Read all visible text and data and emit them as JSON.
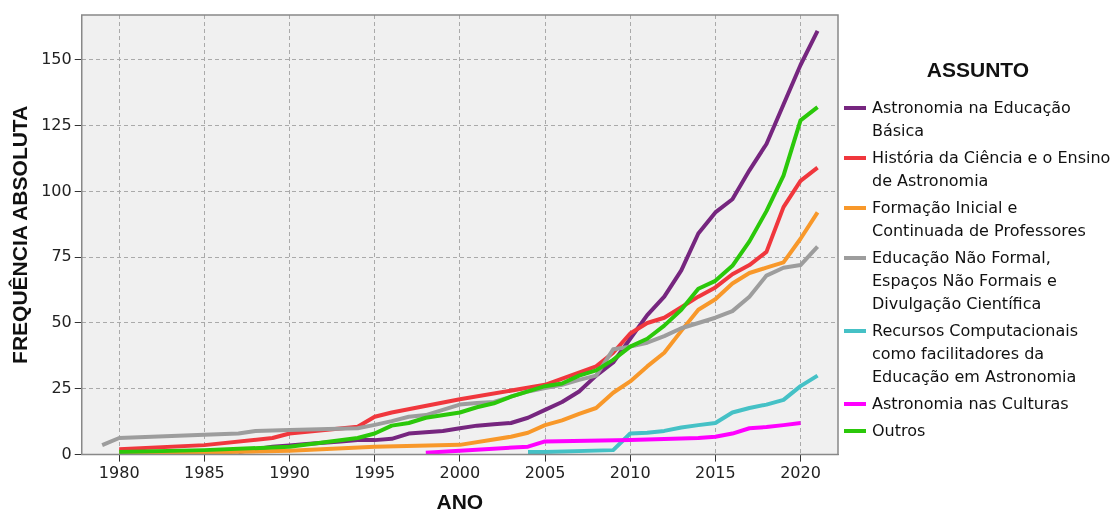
{
  "chart_data": {
    "type": "line",
    "xlabel": "ANO",
    "ylabel": "FREQUÊNCIA ABSOLUTA",
    "legend_title": "ASSUNTO",
    "xlim": [
      1977.8,
      2022.2
    ],
    "xticks": [
      1980,
      1985,
      1990,
      1995,
      2000,
      2005,
      2010,
      2015,
      2020
    ],
    "ylim": [
      0,
      167
    ],
    "yticks": [
      0,
      25,
      50,
      75,
      100,
      125,
      150
    ],
    "grid": true,
    "legend": "right",
    "marker": "none",
    "line_style": "solid",
    "series": [
      {
        "name": "Astronomia na Educação Básica",
        "color": "#76267f",
        "x": [
          1987,
          1988,
          1989,
          1990,
          1991,
          1992,
          1993,
          1994,
          1995,
          1996,
          1997,
          1998,
          1999,
          2000,
          2001,
          2002,
          2003,
          2004,
          2005,
          2006,
          2007,
          2008,
          2009,
          2010,
          2011,
          2012,
          2013,
          2014,
          2015,
          2016,
          2017,
          2018,
          2019,
          2020,
          2021
        ],
        "values": [
          1,
          2,
          3,
          3.5,
          4,
          4.5,
          5,
          5.5,
          5.5,
          6,
          8,
          8.5,
          9,
          10,
          11,
          11.5,
          12,
          14,
          17,
          20,
          24,
          30,
          35,
          44,
          53,
          60,
          70,
          84,
          92,
          97,
          108,
          118,
          133,
          148,
          161
        ]
      },
      {
        "name": "História da Ciência e o Ensino de Astronomia",
        "color": "#f0373d",
        "x": [
          1980,
          1985,
          1989,
          1990,
          1994,
          1995,
          1996,
          2000,
          2005,
          2008,
          2009,
          2010,
          2011,
          2012,
          2013,
          2014,
          2015,
          2016,
          2017,
          2018,
          2019,
          2020,
          2021
        ],
        "values": [
          2,
          3.6,
          6.3,
          8,
          10.6,
          14.4,
          16,
          21,
          26.5,
          33.5,
          38.7,
          46,
          50,
          52,
          56,
          60,
          63.5,
          68.5,
          72,
          77,
          94,
          104,
          109
        ]
      },
      {
        "name": "Formação Inicial e Continuada de Professores",
        "color": "#f8982a",
        "x": [
          1980,
          1985,
          1990,
          1995,
          2000,
          2003,
          2004,
          2005,
          2006,
          2007,
          2008,
          2009,
          2010,
          2011,
          2012,
          2013,
          2014,
          2015,
          2016,
          2017,
          2018,
          2019,
          2020,
          2021
        ],
        "values": [
          0.5,
          0.8,
          1.5,
          3,
          3.7,
          6.8,
          8.3,
          11.2,
          13,
          15.5,
          17.7,
          23.5,
          27.8,
          33.5,
          38.7,
          47,
          55,
          59,
          65,
          69,
          71,
          73,
          82,
          92
        ]
      },
      {
        "name": "Educação Não Formal, Espaços Não Formais e Divulgação Científica",
        "color": "#9d9d9d",
        "x": [
          1979,
          1980,
          1985,
          1987,
          1988,
          1990,
          1994,
          1995,
          1996,
          1997,
          1998,
          2000,
          2001,
          2002,
          2003,
          2004,
          2005,
          2006,
          2007,
          2008,
          2009,
          2010,
          2011,
          2012,
          2013,
          2014,
          2015,
          2016,
          2017,
          2018,
          2019,
          2020,
          2021
        ],
        "values": [
          3.6,
          6.3,
          7.5,
          8,
          9,
          9.3,
          10,
          11.3,
          12.7,
          14.4,
          15,
          19,
          19.6,
          20,
          22,
          24,
          25.3,
          26.5,
          28.4,
          30,
          40,
          41,
          42.5,
          45,
          48,
          50,
          52,
          54.5,
          60,
          68,
          71,
          72,
          79
        ]
      },
      {
        "name": "Recursos Computacionais como facilitadores da Educação em Astronomia",
        "color": "#45c1c6",
        "x": [
          2004,
          2005,
          2009,
          2010,
          2011,
          2012,
          2013,
          2014,
          2015,
          2016,
          2017,
          2018,
          2019,
          2020,
          2021
        ],
        "values": [
          1,
          1,
          1.7,
          8,
          8.3,
          9,
          10.3,
          11.2,
          12,
          16,
          17.7,
          19,
          20.8,
          26,
          30
        ]
      },
      {
        "name": "Astronomia nas Culturas",
        "color": "#ff00ff",
        "x": [
          1998,
          2000,
          2004,
          2005,
          2010,
          2014,
          2015,
          2016,
          2017,
          2018,
          2019,
          2020
        ],
        "values": [
          0.7,
          1.5,
          3,
          5,
          5.5,
          6.3,
          6.8,
          8,
          10,
          10.5,
          11.2,
          12
        ]
      },
      {
        "name": "Outros",
        "color": "#2bc80a",
        "x": [
          1980,
          1985,
          1990,
          1994,
          1995,
          1996,
          1997,
          1998,
          2000,
          2001,
          2002,
          2003,
          2004,
          2005,
          2006,
          2007,
          2008,
          2009,
          2010,
          2011,
          2012,
          2013,
          2014,
          2015,
          2016,
          2017,
          2018,
          2019,
          2020,
          2021
        ],
        "values": [
          1,
          1.7,
          3,
          6.3,
          8,
          11,
          12,
          14,
          16,
          18,
          19.5,
          22,
          24,
          26,
          27,
          30,
          32,
          36,
          41,
          44,
          49,
          55,
          63,
          66,
          71.7,
          81,
          92.5,
          106,
          127,
          132
        ]
      }
    ]
  }
}
